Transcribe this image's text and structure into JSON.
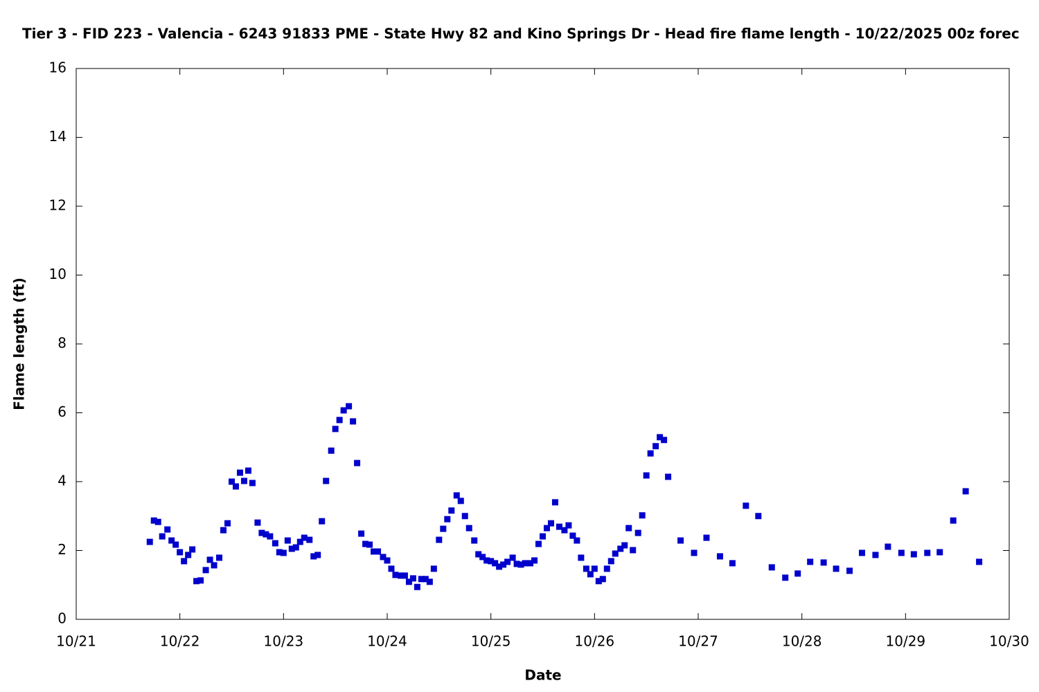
{
  "chart_data": {
    "type": "scatter",
    "title": "Tier 3 - FID 223 - Valencia - 6243 91833 PME - State Hwy 82 and Kino Springs Dr - Head fire flame length - 10/22/2025 00z forec",
    "x_label": "Date",
    "y_label": "Flame length (ft)",
    "color": "#0000cc",
    "xlim": [
      21,
      30
    ],
    "xticks": [
      {
        "value": 21,
        "label": "10/21"
      },
      {
        "value": 22,
        "label": "10/22"
      },
      {
        "value": 23,
        "label": "10/23"
      },
      {
        "value": 24,
        "label": "10/24"
      },
      {
        "value": 25,
        "label": "10/25"
      },
      {
        "value": 26,
        "label": "10/26"
      },
      {
        "value": 27,
        "label": "10/27"
      },
      {
        "value": 28,
        "label": "10/28"
      },
      {
        "value": 29,
        "label": "10/29"
      },
      {
        "value": 30,
        "label": "10/30"
      }
    ],
    "ylim": [
      0,
      16
    ],
    "yticks": [
      0,
      2,
      4,
      6,
      8,
      10,
      12,
      14,
      16
    ],
    "x": [
      21.71,
      21.75,
      21.79,
      21.83,
      21.88,
      21.92,
      21.96,
      22.0,
      22.04,
      22.08,
      22.12,
      22.16,
      22.2,
      22.25,
      22.29,
      22.33,
      22.38,
      22.42,
      22.46,
      22.5,
      22.54,
      22.58,
      22.62,
      22.66,
      22.7,
      22.75,
      22.79,
      22.83,
      22.87,
      22.92,
      22.96,
      23.0,
      23.04,
      23.08,
      23.12,
      23.16,
      23.2,
      23.25,
      23.29,
      23.33,
      23.37,
      23.41,
      23.46,
      23.5,
      23.54,
      23.58,
      23.63,
      23.67,
      23.71,
      23.75,
      23.79,
      23.83,
      23.87,
      23.91,
      23.96,
      24.0,
      24.04,
      24.08,
      24.13,
      24.17,
      24.21,
      24.25,
      24.29,
      24.33,
      24.37,
      24.41,
      24.45,
      24.5,
      24.54,
      24.58,
      24.62,
      24.67,
      24.71,
      24.75,
      24.79,
      24.84,
      24.88,
      24.92,
      24.96,
      25.0,
      25.04,
      25.08,
      25.12,
      25.16,
      25.21,
      25.25,
      25.29,
      25.33,
      25.38,
      25.42,
      25.46,
      25.5,
      25.54,
      25.58,
      25.62,
      25.66,
      25.71,
      25.75,
      25.79,
      25.83,
      25.87,
      25.92,
      25.96,
      26.0,
      26.04,
      26.08,
      26.12,
      26.16,
      26.2,
      26.25,
      26.29,
      26.33,
      26.37,
      26.42,
      26.46,
      26.5,
      26.54,
      26.59,
      26.63,
      26.67,
      26.71,
      26.83,
      26.96,
      27.08,
      27.21,
      27.33,
      27.46,
      27.58,
      27.71,
      27.84,
      27.96,
      28.08,
      28.21,
      28.33,
      28.46,
      28.58,
      28.71,
      28.83,
      28.96,
      29.08,
      29.21,
      29.33,
      29.46,
      29.58,
      29.71
    ],
    "values": [
      2.25,
      2.87,
      2.83,
      2.41,
      2.61,
      2.29,
      2.17,
      1.95,
      1.69,
      1.87,
      2.03,
      1.11,
      1.13,
      1.43,
      1.73,
      1.57,
      1.79,
      2.59,
      2.79,
      4.0,
      3.86,
      4.26,
      4.02,
      4.32,
      3.96,
      2.81,
      2.51,
      2.47,
      2.41,
      2.21,
      1.95,
      1.93,
      2.29,
      2.05,
      2.09,
      2.25,
      2.37,
      2.31,
      1.83,
      1.87,
      2.85,
      4.02,
      4.9,
      5.53,
      5.79,
      6.07,
      6.19,
      5.75,
      4.54,
      2.49,
      2.19,
      2.17,
      1.97,
      1.97,
      1.81,
      1.71,
      1.47,
      1.29,
      1.27,
      1.27,
      1.09,
      1.19,
      0.94,
      1.17,
      1.17,
      1.09,
      1.47,
      2.31,
      2.63,
      2.91,
      3.16,
      3.6,
      3.44,
      3.0,
      2.65,
      2.29,
      1.89,
      1.81,
      1.71,
      1.69,
      1.63,
      1.53,
      1.59,
      1.67,
      1.79,
      1.61,
      1.59,
      1.63,
      1.63,
      1.71,
      2.19,
      2.41,
      2.65,
      2.79,
      3.4,
      2.69,
      2.59,
      2.73,
      2.43,
      2.29,
      1.79,
      1.47,
      1.31,
      1.47,
      1.11,
      1.17,
      1.47,
      1.69,
      1.91,
      2.05,
      2.15,
      2.65,
      2.01,
      2.51,
      3.02,
      4.18,
      4.82,
      5.03,
      5.29,
      5.21,
      4.14,
      2.29,
      1.93,
      2.37,
      1.83,
      1.63,
      3.3,
      3.0,
      1.51,
      1.21,
      1.33,
      1.67,
      1.65,
      1.47,
      1.41,
      1.93,
      1.87,
      2.11,
      1.93,
      1.89,
      1.93,
      1.95,
      2.87,
      3.72,
      1.67
    ]
  }
}
